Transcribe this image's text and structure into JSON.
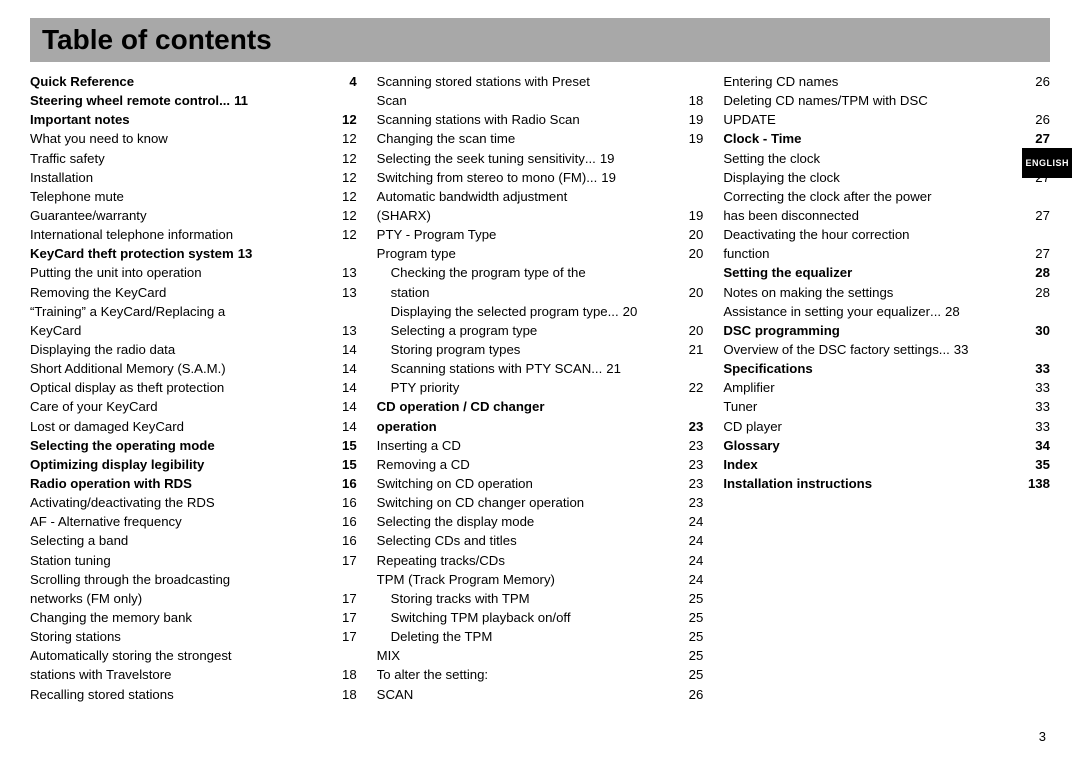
{
  "title": "Table of contents",
  "language_tab": "ENGLISH",
  "page_number": "3",
  "entries": [
    {
      "label": "Quick Reference",
      "page": "4",
      "bold": true
    },
    {
      "label": "Steering wheel remote control",
      "page": "11",
      "bold": true,
      "leader": "short"
    },
    {
      "label": "Important notes",
      "page": "12",
      "bold": true
    },
    {
      "label": "What you need to know",
      "page": "12"
    },
    {
      "label": "Traffic safety",
      "page": "12"
    },
    {
      "label": "Installation",
      "page": "12"
    },
    {
      "label": "Telephone mute",
      "page": "12"
    },
    {
      "label": "Guarantee/warranty",
      "page": "12"
    },
    {
      "label": "International telephone information",
      "page": "12"
    },
    {
      "label": "KeyCard theft protection system",
      "page": "13",
      "bold": true,
      "leader": "none"
    },
    {
      "label": "Putting the unit into operation",
      "page": "13"
    },
    {
      "label": "Removing the KeyCard",
      "page": "13"
    },
    {
      "cont": "“Training” a KeyCard/Replacing a"
    },
    {
      "label": "KeyCard",
      "page": "13"
    },
    {
      "label": "Displaying the radio data",
      "page": "14"
    },
    {
      "label": "Short Additional Memory (S.A.M.)",
      "page": "14"
    },
    {
      "label": "Optical display as theft protection",
      "page": "14"
    },
    {
      "label": "Care of your KeyCard",
      "page": "14"
    },
    {
      "label": "Lost or damaged KeyCard",
      "page": "14"
    },
    {
      "label": "Selecting the operating mode",
      "page": "15",
      "bold": true
    },
    {
      "label": "Optimizing display legibility",
      "page": "15",
      "bold": true
    },
    {
      "label": "Radio operation with RDS",
      "page": "16",
      "bold": true
    },
    {
      "label": "Activating/deactivating the RDS",
      "page": "16"
    },
    {
      "label": "AF - Alternative frequency",
      "page": "16"
    },
    {
      "label": "Selecting a band",
      "page": "16"
    },
    {
      "label": "Station tuning",
      "page": "17"
    },
    {
      "cont": "Scrolling through the broadcasting"
    },
    {
      "label": "networks (FM only)",
      "page": "17"
    },
    {
      "label": "Changing the memory bank",
      "page": "17"
    },
    {
      "label": "Storing stations",
      "page": "17"
    },
    {
      "cont": "Automatically storing the strongest"
    },
    {
      "label": "stations with Travelstore",
      "page": "18"
    },
    {
      "label": "Recalling stored stations",
      "page": "18"
    },
    {
      "cont": "Scanning stored stations with Preset"
    },
    {
      "label": "Scan",
      "page": "18"
    },
    {
      "label": "Scanning stations with Radio Scan",
      "page": "19"
    },
    {
      "label": "Changing the scan time",
      "page": "19"
    },
    {
      "label": "Selecting the seek tuning sensitivity",
      "page": "19",
      "leader": "short"
    },
    {
      "label": "Switching from stereo to mono (FM)",
      "page": "19",
      "leader": "short"
    },
    {
      "cont": "Automatic bandwidth adjustment"
    },
    {
      "label": "(SHARX)",
      "page": "19"
    },
    {
      "label": "PTY - Program Type",
      "page": "20"
    },
    {
      "label": "Program type",
      "page": "20"
    },
    {
      "cont": "Checking the program type of the",
      "indent": 1
    },
    {
      "label": "station",
      "page": "20",
      "indent": 1
    },
    {
      "label": "Displaying the selected program type",
      "page": "20",
      "indent": 1,
      "leader": "short"
    },
    {
      "label": "Selecting a program type",
      "page": "20",
      "indent": 1
    },
    {
      "label": "Storing program types",
      "page": "21",
      "indent": 1
    },
    {
      "label": "Scanning stations with PTY SCAN",
      "page": "21",
      "indent": 1,
      "leader": "short"
    },
    {
      "label": "PTY priority",
      "page": "22",
      "indent": 1
    },
    {
      "cont": "CD operation / CD changer",
      "bold": true
    },
    {
      "label": "operation",
      "page": "23",
      "bold": true
    },
    {
      "label": "Inserting a CD",
      "page": "23"
    },
    {
      "label": "Removing a CD",
      "page": "23"
    },
    {
      "label": "Switching on CD operation",
      "page": "23"
    },
    {
      "label": "Switching on CD changer operation",
      "page": "23"
    },
    {
      "label": "Selecting the display mode",
      "page": "24"
    },
    {
      "label": "Selecting CDs and titles",
      "page": "24"
    },
    {
      "label": "Repeating tracks/CDs",
      "page": "24"
    },
    {
      "label": "TPM (Track Program Memory)",
      "page": "24"
    },
    {
      "label": "Storing tracks with TPM",
      "page": "25",
      "indent": 1
    },
    {
      "label": "Switching TPM playback on/off",
      "page": "25",
      "indent": 1
    },
    {
      "label": "Deleting the TPM",
      "page": "25",
      "indent": 1
    },
    {
      "label": "MIX",
      "page": "25"
    },
    {
      "label": "To alter the setting:",
      "page": "25"
    },
    {
      "label": "SCAN",
      "page": "26"
    },
    {
      "label": "Entering CD names",
      "page": "26"
    },
    {
      "cont": "Deleting CD names/TPM with DSC"
    },
    {
      "label": "UPDATE",
      "page": "26"
    },
    {
      "label": "Clock - Time",
      "page": "27",
      "bold": true
    },
    {
      "label": "Setting the clock",
      "page": "27"
    },
    {
      "label": "Displaying the clock",
      "page": "27"
    },
    {
      "cont": "Correcting the clock after the power"
    },
    {
      "label": "has been disconnected",
      "page": "27"
    },
    {
      "cont": "Deactivating the hour correction"
    },
    {
      "label": "function",
      "page": "27"
    },
    {
      "label": "Setting the equalizer",
      "page": "28",
      "bold": true
    },
    {
      "label": "Notes on making the settings",
      "page": "28"
    },
    {
      "label": "Assistance in setting your equalizer",
      "page": "28",
      "leader": "short"
    },
    {
      "label": "DSC programming",
      "page": "30",
      "bold": true
    },
    {
      "label": "Overview of the DSC factory settings",
      "page": "33",
      "leader": "short"
    },
    {
      "label": "Specifications",
      "page": "33",
      "bold": true
    },
    {
      "label": "Amplifier",
      "page": "33"
    },
    {
      "label": "Tuner",
      "page": "33"
    },
    {
      "label": "CD player",
      "page": "33"
    },
    {
      "label": "Glossary",
      "page": "34",
      "bold": true
    },
    {
      "label": "Index",
      "page": "35",
      "bold": true
    },
    {
      "label": "Installation instructions",
      "page": "138",
      "bold": true
    }
  ]
}
